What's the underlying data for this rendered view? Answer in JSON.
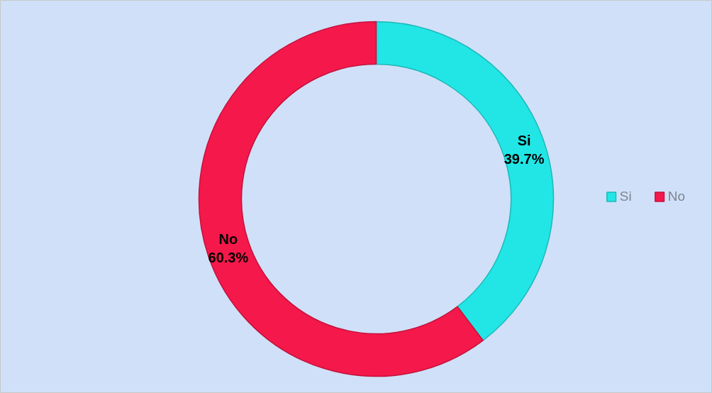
{
  "chart_data": {
    "type": "donut",
    "categories": [
      "Si",
      "No"
    ],
    "values": [
      39.7,
      60.3
    ],
    "colors": [
      "#22e6e6",
      "#f5184b"
    ],
    "value_labels": [
      "39.7%",
      "60.3%"
    ],
    "legend": "right"
  }
}
